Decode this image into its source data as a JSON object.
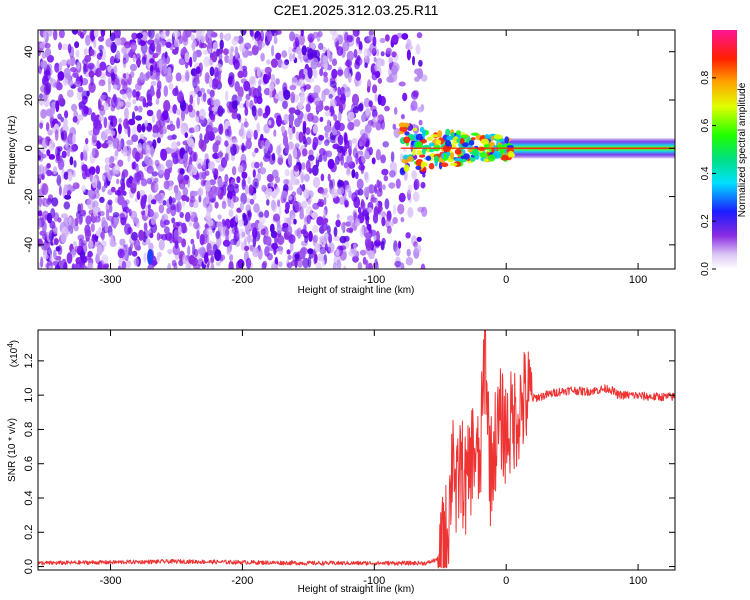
{
  "title": "C2E1.2025.312.03.25.R11",
  "colors": {
    "snr_line": "#ee3333",
    "spectrum_noise": "#8a2be2",
    "spectrum_noise_dark": "#6600ee",
    "axis": "#000000"
  },
  "chart_data": [
    {
      "type": "heatmap",
      "title": "C2E1.2025.312.03.25.R11",
      "xlabel": "Height of straight line (km)",
      "ylabel": "Frequency (Hz)",
      "xlim": [
        -355,
        128
      ],
      "ylim": [
        -50,
        49
      ],
      "x_ticks": [
        {
          "value": -300,
          "label": "-300"
        },
        {
          "value": -200,
          "label": "-200"
        },
        {
          "value": -100,
          "label": "-100"
        },
        {
          "value": 0,
          "label": "0"
        },
        {
          "value": 100,
          "label": "100"
        }
      ],
      "y_ticks": [
        {
          "value": -40,
          "label": "-40"
        },
        {
          "value": -20,
          "label": "-20"
        },
        {
          "value": 0,
          "label": "0"
        },
        {
          "value": 20,
          "label": "20"
        },
        {
          "value": 40,
          "label": "40"
        }
      ],
      "noise_region_x": [
        -355,
        -70
      ],
      "signal_start_x": -80,
      "signal_frequency_hz": 0,
      "colorbar": {
        "label": "Normalized spectral amplitude",
        "range": [
          0.0,
          1.0
        ],
        "ticks": [
          {
            "value": 0.0,
            "label": "0.0"
          },
          {
            "value": 0.2,
            "label": "0.2"
          },
          {
            "value": 0.4,
            "label": "0.4"
          },
          {
            "value": 0.6,
            "label": "0.6"
          },
          {
            "value": 0.8,
            "label": "0.8"
          }
        ]
      }
    },
    {
      "type": "line",
      "xlabel": "Height of straight line (km)",
      "ylabel": "SNR (10 * v/v)",
      "scale_label": "(x10",
      "scale_exp": "4",
      "scale_close": ")",
      "xlim": [
        -355,
        128
      ],
      "ylim": [
        -0.02,
        1.38
      ],
      "x_ticks": [
        {
          "value": -300,
          "label": "-300"
        },
        {
          "value": -200,
          "label": "-200"
        },
        {
          "value": -100,
          "label": "-100"
        },
        {
          "value": 0,
          "label": "0"
        },
        {
          "value": 100,
          "label": "100"
        }
      ],
      "y_ticks": [
        {
          "value": 0.0,
          "label": "0.0"
        },
        {
          "value": 0.2,
          "label": "0.2"
        },
        {
          "value": 0.4,
          "label": "0.4"
        },
        {
          "value": 0.6,
          "label": "0.6"
        },
        {
          "value": 0.8,
          "label": "0.8"
        },
        {
          "value": 1.0,
          "label": "1.0"
        },
        {
          "value": 1.2,
          "label": "1.2"
        }
      ],
      "series": [
        {
          "name": "SNR",
          "x": [
            -355,
            -300,
            -250,
            -200,
            -150,
            -100,
            -60,
            -50,
            -45,
            -42,
            -40,
            -38,
            -35,
            -30,
            -25,
            -20,
            -16,
            -12,
            -8,
            -4,
            0,
            5,
            10,
            15,
            20,
            30,
            40,
            50,
            60,
            70,
            78,
            85,
            95,
            110,
            128
          ],
          "y": [
            0.02,
            0.025,
            0.03,
            0.025,
            0.02,
            0.02,
            0.02,
            0.05,
            0.2,
            0.45,
            0.8,
            0.35,
            0.6,
            0.45,
            0.7,
            0.55,
            1.3,
            0.55,
            0.75,
            0.85,
            0.78,
            0.85,
            0.92,
            0.98,
            0.98,
            1.0,
            1.02,
            1.03,
            1.02,
            1.03,
            1.04,
            1.0,
            1.0,
            0.99,
            0.99
          ]
        }
      ]
    }
  ]
}
